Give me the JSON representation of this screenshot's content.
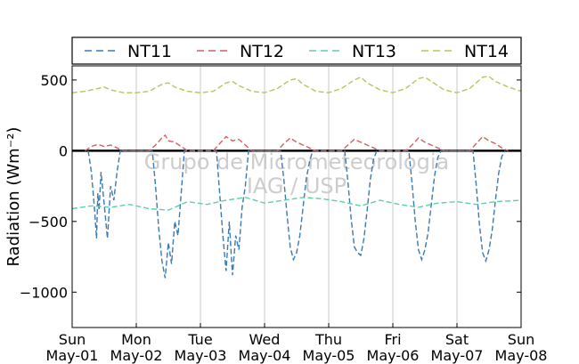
{
  "chart_data": {
    "type": "line",
    "ylabel": "Radiation (Wm⁻²)",
    "ylim": [
      -1250,
      600
    ],
    "yticks": [
      500,
      0,
      -500,
      -1000
    ],
    "ytick_labels": [
      "500",
      "0",
      "−500",
      "−1000"
    ],
    "xlim": [
      0,
      7
    ],
    "xticks": [
      {
        "day": "Sun",
        "date": "May-01"
      },
      {
        "day": "Mon",
        "date": "May-02"
      },
      {
        "day": "Tue",
        "date": "May-03"
      },
      {
        "day": "Wed",
        "date": "May-04"
      },
      {
        "day": "Thu",
        "date": "May-05"
      },
      {
        "day": "Fri",
        "date": "May-06"
      },
      {
        "day": "Sat",
        "date": "May-07"
      },
      {
        "day": "Sun",
        "date": "May-08"
      }
    ],
    "grid": "vertical",
    "legend_position": "top",
    "watermark": [
      "Grupo de Micrometeorologia",
      "IAG / USP"
    ],
    "series": [
      {
        "name": "NT11",
        "color": "#3a7ab5",
        "x": [
          0.25,
          0.3,
          0.35,
          0.38,
          0.4,
          0.42,
          0.45,
          0.5,
          0.55,
          0.6,
          0.65,
          0.7,
          0.75,
          1.25,
          1.3,
          1.35,
          1.4,
          1.45,
          1.5,
          1.55,
          1.6,
          1.65,
          1.7,
          1.75,
          2.25,
          2.3,
          2.35,
          2.4,
          2.45,
          2.5,
          2.55,
          2.6,
          2.65,
          2.7,
          2.75,
          3.25,
          3.3,
          3.35,
          3.4,
          3.45,
          3.5,
          3.55,
          3.6,
          3.65,
          3.7,
          3.75,
          4.25,
          4.3,
          4.35,
          4.4,
          4.45,
          4.5,
          4.55,
          4.6,
          4.65,
          4.7,
          4.75,
          5.25,
          5.3,
          5.35,
          5.4,
          5.45,
          5.5,
          5.55,
          5.6,
          5.65,
          5.7,
          5.75,
          6.25,
          6.3,
          6.35,
          6.4,
          6.45,
          6.5,
          6.55,
          6.6,
          6.65,
          6.7,
          6.75
        ],
        "y": [
          0,
          -150,
          -420,
          -620,
          -300,
          -420,
          -150,
          -380,
          -620,
          -250,
          -350,
          -150,
          0,
          0,
          -250,
          -550,
          -780,
          -900,
          -650,
          -800,
          -500,
          -600,
          -300,
          0,
          0,
          -300,
          -600,
          -850,
          -500,
          -880,
          -600,
          -700,
          -400,
          -250,
          0,
          0,
          -200,
          -450,
          -680,
          -770,
          -720,
          -600,
          -400,
          -200,
          -80,
          0,
          0,
          -220,
          -480,
          -680,
          -720,
          -740,
          -620,
          -420,
          -200,
          -60,
          0,
          0,
          -230,
          -500,
          -700,
          -770,
          -700,
          -580,
          -380,
          -180,
          -50,
          0,
          0,
          -240,
          -520,
          -720,
          -780,
          -700,
          -560,
          -350,
          -160,
          -40,
          0
        ]
      },
      {
        "name": "NT12",
        "color": "#d45f5f",
        "x": [
          0.2,
          0.3,
          0.4,
          0.5,
          0.6,
          0.7,
          0.8,
          1.2,
          1.3,
          1.4,
          1.45,
          1.5,
          1.6,
          1.7,
          1.8,
          2.2,
          2.3,
          2.4,
          2.5,
          2.6,
          2.7,
          2.8,
          3.2,
          3.3,
          3.4,
          3.5,
          3.6,
          3.7,
          3.8,
          4.2,
          4.3,
          4.4,
          4.5,
          4.6,
          4.7,
          4.8,
          5.2,
          5.3,
          5.4,
          5.5,
          5.6,
          5.7,
          5.8,
          6.2,
          6.3,
          6.4,
          6.5,
          6.6,
          6.7,
          6.8
        ],
        "y": [
          0,
          30,
          45,
          30,
          40,
          20,
          0,
          0,
          40,
          90,
          110,
          70,
          60,
          30,
          0,
          0,
          50,
          100,
          70,
          80,
          40,
          0,
          0,
          50,
          90,
          60,
          40,
          20,
          0,
          0,
          40,
          80,
          60,
          40,
          20,
          0,
          0,
          40,
          90,
          60,
          40,
          20,
          0,
          0,
          50,
          100,
          70,
          50,
          20,
          0
        ]
      },
      {
        "name": "NT13",
        "color": "#5fcfa8",
        "x": [
          0,
          0.3,
          0.6,
          0.9,
          1.2,
          1.5,
          1.8,
          2.1,
          2.4,
          2.7,
          3.0,
          3.3,
          3.6,
          3.9,
          4.2,
          4.5,
          4.8,
          5.1,
          5.4,
          5.7,
          6.0,
          6.3,
          6.6,
          7.0
        ],
        "y": [
          -410,
          -390,
          -400,
          -380,
          -410,
          -420,
          -360,
          -380,
          -350,
          -330,
          -370,
          -350,
          -330,
          -340,
          -360,
          -390,
          -350,
          -380,
          -400,
          -370,
          -360,
          -380,
          -360,
          -350
        ]
      },
      {
        "name": "NT14",
        "color": "#b8c45c",
        "x": [
          0,
          0.2,
          0.4,
          0.5,
          0.6,
          0.8,
          1.0,
          1.2,
          1.4,
          1.5,
          1.6,
          1.8,
          2.0,
          2.2,
          2.4,
          2.5,
          2.6,
          2.8,
          3.0,
          3.2,
          3.4,
          3.5,
          3.6,
          3.8,
          4.0,
          4.2,
          4.4,
          4.5,
          4.6,
          4.8,
          5.0,
          5.2,
          5.4,
          5.5,
          5.6,
          5.8,
          6.0,
          6.2,
          6.4,
          6.5,
          6.6,
          6.8,
          7.0
        ],
        "y": [
          410,
          420,
          440,
          450,
          430,
          410,
          410,
          420,
          470,
          480,
          450,
          420,
          410,
          420,
          480,
          490,
          460,
          420,
          410,
          440,
          500,
          510,
          470,
          420,
          410,
          440,
          500,
          520,
          480,
          430,
          410,
          440,
          510,
          520,
          490,
          430,
          410,
          440,
          520,
          525,
          490,
          450,
          420
        ]
      }
    ]
  }
}
